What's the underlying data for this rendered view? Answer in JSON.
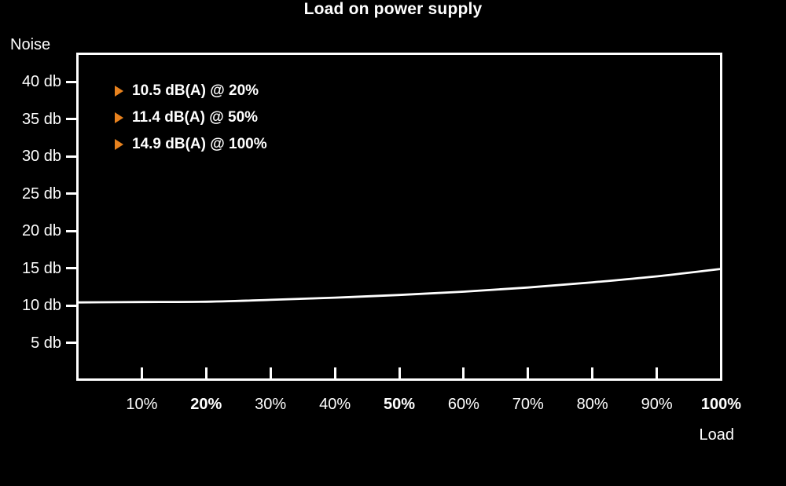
{
  "chart": {
    "title": "Load on power supply",
    "y_axis": {
      "title": "Noise",
      "ticks": [
        {
          "label": "40 db",
          "value": 40
        },
        {
          "label": "35 db",
          "value": 35
        },
        {
          "label": "30 db",
          "value": 30
        },
        {
          "label": "25 db",
          "value": 25
        },
        {
          "label": "20 db",
          "value": 20
        },
        {
          "label": "15 db",
          "value": 15
        },
        {
          "label": "10 db",
          "value": 10
        },
        {
          "label": "5 db",
          "value": 5
        }
      ]
    },
    "x_axis": {
      "title": "Load",
      "ticks": [
        {
          "label": "10%",
          "value": 10,
          "bold": false
        },
        {
          "label": "20%",
          "value": 20,
          "bold": true
        },
        {
          "label": "30%",
          "value": 30,
          "bold": false
        },
        {
          "label": "40%",
          "value": 40,
          "bold": false
        },
        {
          "label": "50%",
          "value": 50,
          "bold": true
        },
        {
          "label": "60%",
          "value": 60,
          "bold": false
        },
        {
          "label": "70%",
          "value": 70,
          "bold": false
        },
        {
          "label": "80%",
          "value": 80,
          "bold": false
        },
        {
          "label": "90%",
          "value": 90,
          "bold": false
        },
        {
          "label": "100%",
          "value": 100,
          "bold": true
        }
      ]
    },
    "annotations": [
      {
        "label": "10.5 dB(A) @ 20%"
      },
      {
        "label": "11.4 dB(A) @ 50%"
      },
      {
        "label": "14.9 dB(A) @ 100%"
      }
    ]
  },
  "chart_data": {
    "type": "line",
    "title": "Load on power supply",
    "xlabel": "Load",
    "ylabel": "Noise",
    "x": [
      0,
      10,
      20,
      30,
      40,
      50,
      60,
      70,
      80,
      90,
      100
    ],
    "series": [
      {
        "name": "Noise dB(A)",
        "values": [
          10.4,
          10.45,
          10.5,
          10.75,
          11.05,
          11.4,
          11.85,
          12.4,
          13.1,
          13.9,
          14.9
        ]
      }
    ],
    "xlim": [
      0,
      100
    ],
    "ylim": [
      0,
      43.8
    ],
    "grid": false,
    "legend_position": "top-left",
    "annotations": [
      "10.5 dB(A) @ 20%",
      "11.4 dB(A) @ 50%",
      "14.9 dB(A) @ 100%"
    ],
    "line_color": "#ffffff",
    "background": "#000000",
    "marker_color": "#e8821e"
  },
  "colors": {
    "background": "#000000",
    "text": "#ffffff",
    "accent_orange": "#e8821e",
    "curve": "#ffffff"
  }
}
